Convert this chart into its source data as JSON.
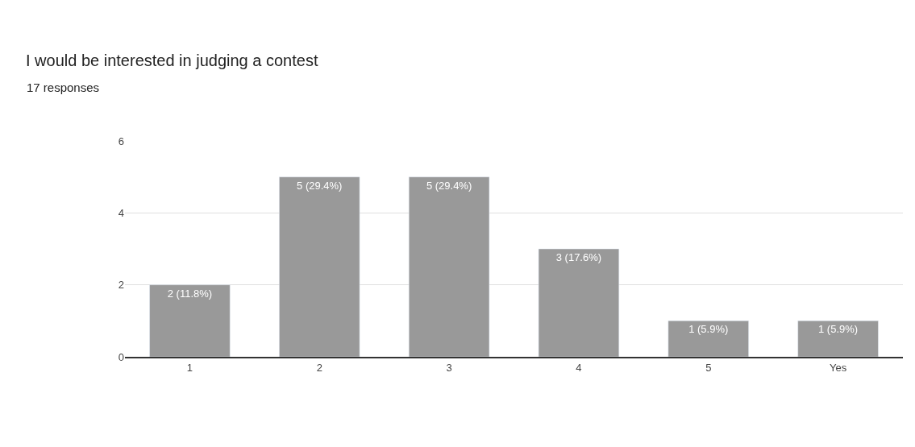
{
  "chart_data": {
    "type": "bar",
    "title": "I would be interested in judging a contest",
    "subtitle": "17 responses",
    "categories": [
      "1",
      "2",
      "3",
      "4",
      "5",
      "Yes"
    ],
    "values": [
      2,
      5,
      5,
      3,
      1,
      1
    ],
    "value_labels": [
      "2 (11.8%)",
      "5 (29.4%)",
      "5 (29.4%)",
      "3 (17.6%)",
      "1 (5.9%)",
      "1 (5.9%)"
    ],
    "color": "#999999",
    "ylim": [
      0,
      6
    ],
    "yticks": [
      0,
      2,
      4,
      6
    ],
    "grid": "y",
    "legend": false
  }
}
